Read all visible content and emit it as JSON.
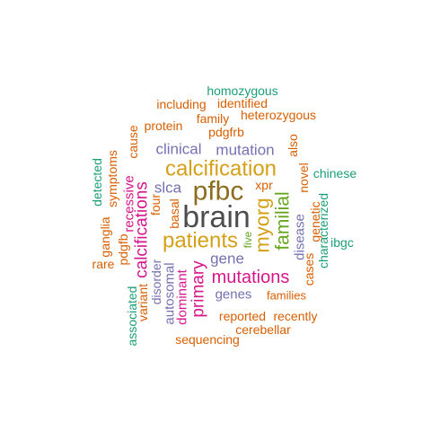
{
  "palette": {
    "dark_gray": "#4d4d4d",
    "olive_brown": "#8c6d1f",
    "mustard": "#d4a017",
    "magenta": "#d6168b",
    "olive_green": "#66a61e",
    "purple": "#7570b3",
    "orange": "#d95f02",
    "teal": "#1b9e77"
  },
  "words": [
    {
      "text": "brain",
      "color": "dark_gray"
    },
    {
      "text": "pfbc",
      "color": "olive_brown"
    },
    {
      "text": "calcification",
      "color": "mustard"
    },
    {
      "text": "patients",
      "color": "mustard"
    },
    {
      "text": "myorg",
      "color": "mustard"
    },
    {
      "text": "familial",
      "color": "olive_green"
    },
    {
      "text": "mutations",
      "color": "magenta"
    },
    {
      "text": "calcifications",
      "color": "magenta"
    },
    {
      "text": "primary",
      "color": "magenta"
    },
    {
      "text": "gene",
      "color": "purple"
    },
    {
      "text": "mutation",
      "color": "purple"
    },
    {
      "text": "clinical",
      "color": "purple"
    },
    {
      "text": "slca",
      "color": "purple"
    },
    {
      "text": "genes",
      "color": "purple"
    },
    {
      "text": "disease",
      "color": "purple"
    },
    {
      "text": "autosomal",
      "color": "purple"
    },
    {
      "text": "dominant",
      "color": "magenta"
    },
    {
      "text": "recessive",
      "color": "magenta"
    },
    {
      "text": "pdgfrb",
      "color": "orange"
    },
    {
      "text": "xpr",
      "color": "orange"
    },
    {
      "text": "basal",
      "color": "orange"
    },
    {
      "text": "four",
      "color": "orange"
    },
    {
      "text": "five",
      "color": "olive_green"
    },
    {
      "text": "reported",
      "color": "orange"
    },
    {
      "text": "recently",
      "color": "orange"
    },
    {
      "text": "families",
      "color": "orange"
    },
    {
      "text": "cerebellar",
      "color": "orange"
    },
    {
      "text": "sequencing",
      "color": "orange"
    },
    {
      "text": "family",
      "color": "orange"
    },
    {
      "text": "protein",
      "color": "orange"
    },
    {
      "text": "including",
      "color": "orange"
    },
    {
      "text": "identified",
      "color": "orange"
    },
    {
      "text": "heterozygous",
      "color": "orange"
    },
    {
      "text": "homozygous",
      "color": "teal"
    },
    {
      "text": "also",
      "color": "orange"
    },
    {
      "text": "novel",
      "color": "orange"
    },
    {
      "text": "genetic",
      "color": "orange"
    },
    {
      "text": "cases",
      "color": "orange"
    },
    {
      "text": "characterized",
      "color": "teal"
    },
    {
      "text": "ibgc",
      "color": "teal"
    },
    {
      "text": "chinese",
      "color": "teal"
    },
    {
      "text": "cause",
      "color": "orange"
    },
    {
      "text": "symptoms",
      "color": "orange"
    },
    {
      "text": "detected",
      "color": "teal"
    },
    {
      "text": "ganglia",
      "color": "orange"
    },
    {
      "text": "pdgfb",
      "color": "orange"
    },
    {
      "text": "rare",
      "color": "orange"
    },
    {
      "text": "disorder",
      "color": "purple"
    },
    {
      "text": "variant",
      "color": "orange"
    },
    {
      "text": "associated",
      "color": "teal"
    }
  ]
}
